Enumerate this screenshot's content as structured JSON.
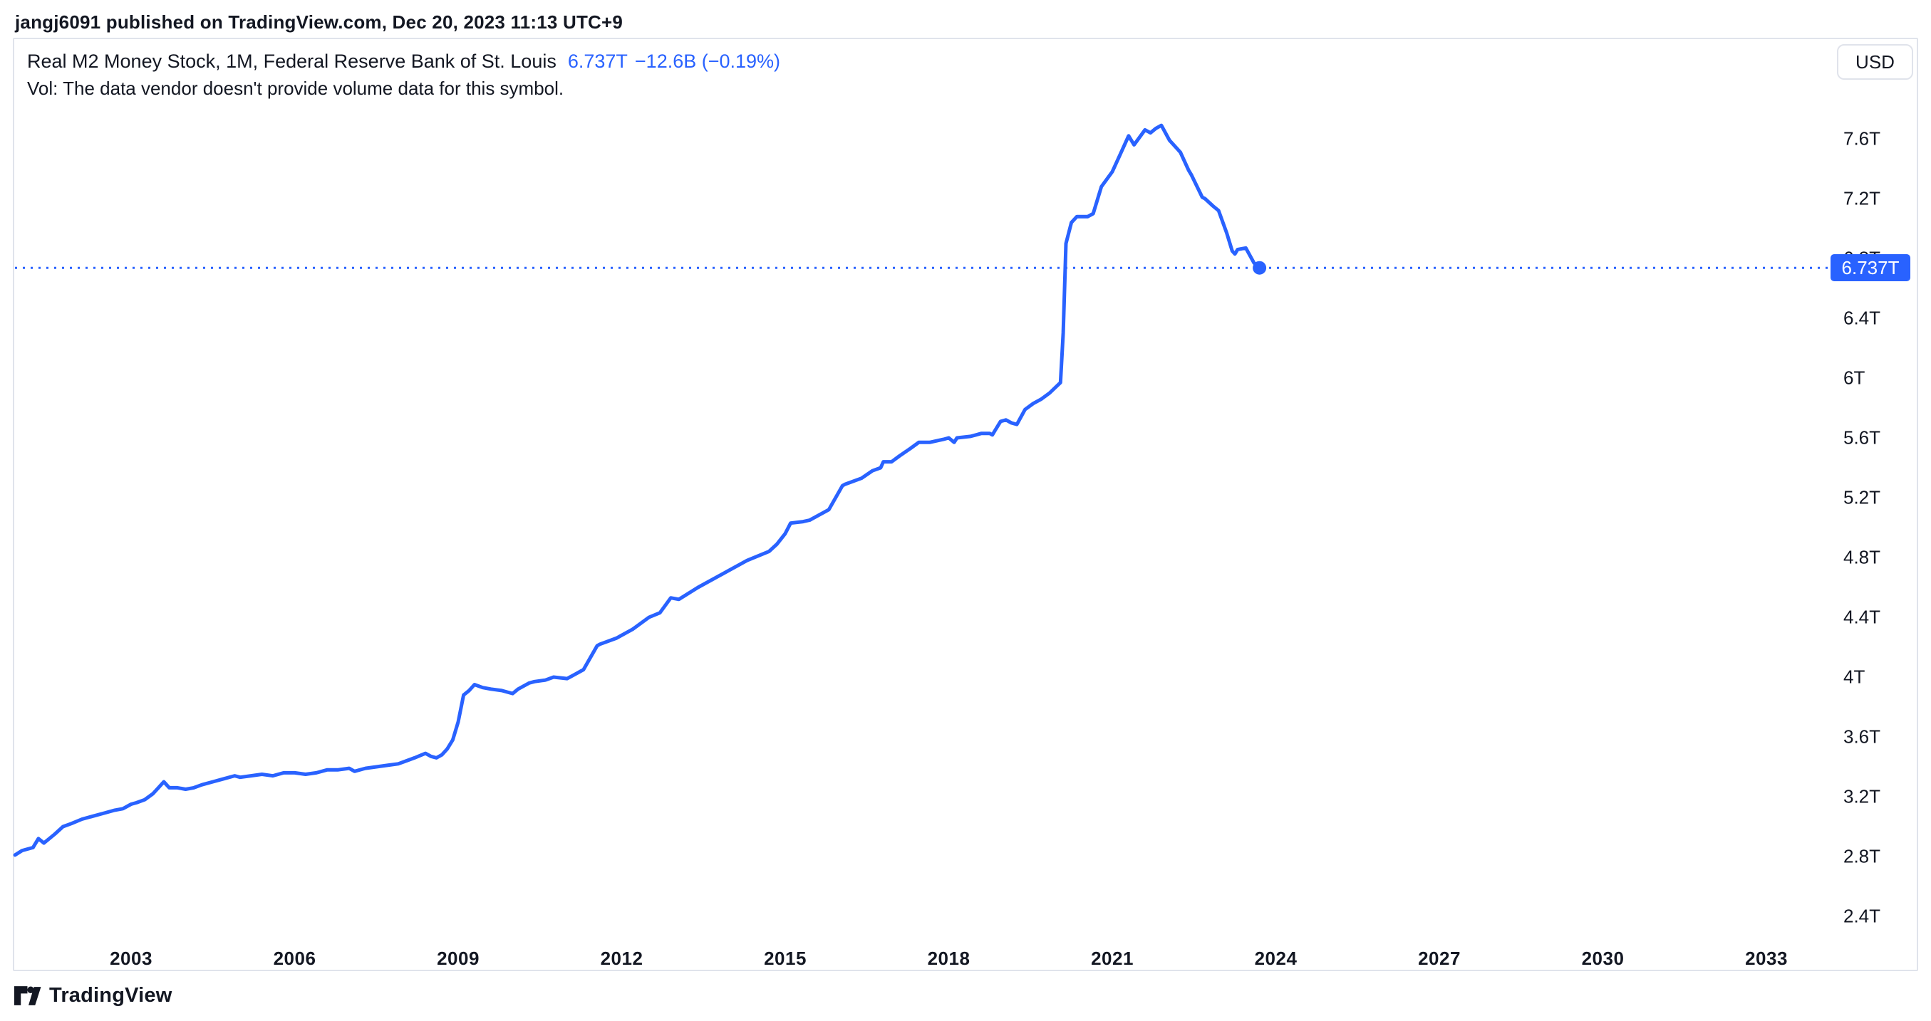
{
  "header": {
    "publish_line": "jangj6091 published on TradingView.com, Dec 20, 2023 11:13 UTC+9"
  },
  "legend": {
    "title": "Real M2 Money Stock, 1M, Federal Reserve Bank of St. Louis",
    "price": "6.737T",
    "change": "−12.6B (−0.19%)",
    "vol_note": "Vol: The data vendor doesn't provide volume data for this symbol."
  },
  "currency_button": {
    "label": "USD"
  },
  "price_label": {
    "text": "6.737T",
    "value": 6.737
  },
  "footer": {
    "brand": "TradingView"
  },
  "colors": {
    "accent": "#2962ff",
    "text": "#131722",
    "border": "#e0e3eb",
    "background": "#ffffff",
    "price_flag_text": "#ffffff"
  },
  "chart_data": {
    "type": "line",
    "title": "Real M2 Money Stock, 1M, Federal Reserve Bank of St. Louis",
    "unit": "USD, trillions",
    "grid": false,
    "legend_position": "none",
    "last_value": 6.737,
    "last_change": "−12.6B (−0.19%)",
    "x_axis_years_visible": [
      2003,
      2006,
      2009,
      2012,
      2015,
      2018,
      2021,
      2024,
      2027,
      2030,
      2033
    ],
    "y_ticks": [
      {
        "value": 7.6,
        "label": "7.6T"
      },
      {
        "value": 7.2,
        "label": "7.2T"
      },
      {
        "value": 6.8,
        "label": "6.8T"
      },
      {
        "value": 6.4,
        "label": "6.4T"
      },
      {
        "value": 6.0,
        "label": "6T"
      },
      {
        "value": 5.6,
        "label": "5.6T"
      },
      {
        "value": 5.2,
        "label": "5.2T"
      },
      {
        "value": 4.8,
        "label": "4.8T"
      },
      {
        "value": 4.4,
        "label": "4.4T"
      },
      {
        "value": 4.0,
        "label": "4T"
      },
      {
        "value": 3.6,
        "label": "3.6T"
      },
      {
        "value": 3.2,
        "label": "3.2T"
      },
      {
        "value": 2.8,
        "label": "2.8T"
      },
      {
        "value": 2.4,
        "label": "2.4T"
      }
    ],
    "x_range_years": [
      2000.85,
      2035.8
    ],
    "y_range": [
      2.05,
      8.27
    ],
    "series": [
      {
        "name": "Real M2 Money Stock",
        "color": "#2962ff",
        "points": [
          [
            2000.87,
            2.81
          ],
          [
            2001.0,
            2.84
          ],
          [
            2001.2,
            2.86
          ],
          [
            2001.3,
            2.92
          ],
          [
            2001.4,
            2.89
          ],
          [
            2001.6,
            2.95
          ],
          [
            2001.75,
            3.0
          ],
          [
            2001.9,
            3.02
          ],
          [
            2002.1,
            3.05
          ],
          [
            2002.3,
            3.07
          ],
          [
            2002.5,
            3.09
          ],
          [
            2002.7,
            3.11
          ],
          [
            2002.85,
            3.12
          ],
          [
            2003.0,
            3.15
          ],
          [
            2003.1,
            3.16
          ],
          [
            2003.25,
            3.18
          ],
          [
            2003.4,
            3.22
          ],
          [
            2003.5,
            3.26
          ],
          [
            2003.6,
            3.3
          ],
          [
            2003.7,
            3.26
          ],
          [
            2003.85,
            3.26
          ],
          [
            2004.0,
            3.25
          ],
          [
            2004.15,
            3.26
          ],
          [
            2004.3,
            3.28
          ],
          [
            2004.5,
            3.3
          ],
          [
            2004.7,
            3.32
          ],
          [
            2004.9,
            3.34
          ],
          [
            2005.0,
            3.33
          ],
          [
            2005.2,
            3.34
          ],
          [
            2005.4,
            3.35
          ],
          [
            2005.6,
            3.34
          ],
          [
            2005.8,
            3.36
          ],
          [
            2006.0,
            3.36
          ],
          [
            2006.2,
            3.35
          ],
          [
            2006.4,
            3.36
          ],
          [
            2006.6,
            3.38
          ],
          [
            2006.8,
            3.38
          ],
          [
            2007.0,
            3.39
          ],
          [
            2007.1,
            3.37
          ],
          [
            2007.3,
            3.39
          ],
          [
            2007.5,
            3.4
          ],
          [
            2007.7,
            3.41
          ],
          [
            2007.9,
            3.42
          ],
          [
            2008.05,
            3.44
          ],
          [
            2008.2,
            3.46
          ],
          [
            2008.4,
            3.49
          ],
          [
            2008.5,
            3.47
          ],
          [
            2008.6,
            3.46
          ],
          [
            2008.7,
            3.48
          ],
          [
            2008.8,
            3.52
          ],
          [
            2008.9,
            3.58
          ],
          [
            2009.0,
            3.7
          ],
          [
            2009.1,
            3.88
          ],
          [
            2009.2,
            3.91
          ],
          [
            2009.3,
            3.95
          ],
          [
            2009.45,
            3.93
          ],
          [
            2009.6,
            3.92
          ],
          [
            2009.8,
            3.91
          ],
          [
            2010.0,
            3.89
          ],
          [
            2010.1,
            3.92
          ],
          [
            2010.3,
            3.96
          ],
          [
            2010.4,
            3.97
          ],
          [
            2010.6,
            3.98
          ],
          [
            2010.75,
            4.0
          ],
          [
            2011.0,
            3.99
          ],
          [
            2011.15,
            4.02
          ],
          [
            2011.3,
            4.05
          ],
          [
            2011.55,
            4.21
          ],
          [
            2011.6,
            4.22
          ],
          [
            2011.9,
            4.26
          ],
          [
            2012.2,
            4.32
          ],
          [
            2012.5,
            4.4
          ],
          [
            2012.7,
            4.43
          ],
          [
            2012.9,
            4.53
          ],
          [
            2013.05,
            4.52
          ],
          [
            2013.4,
            4.6
          ],
          [
            2013.8,
            4.68
          ],
          [
            2014.3,
            4.78
          ],
          [
            2014.7,
            4.84
          ],
          [
            2014.85,
            4.89
          ],
          [
            2015.0,
            4.96
          ],
          [
            2015.1,
            5.03
          ],
          [
            2015.33,
            5.04
          ],
          [
            2015.45,
            5.05
          ],
          [
            2015.6,
            5.08
          ],
          [
            2015.8,
            5.12
          ],
          [
            2016.05,
            5.28
          ],
          [
            2016.1,
            5.29
          ],
          [
            2016.4,
            5.33
          ],
          [
            2016.6,
            5.38
          ],
          [
            2016.75,
            5.4
          ],
          [
            2016.8,
            5.44
          ],
          [
            2016.95,
            5.44
          ],
          [
            2017.1,
            5.48
          ],
          [
            2017.3,
            5.53
          ],
          [
            2017.45,
            5.57
          ],
          [
            2017.65,
            5.57
          ],
          [
            2017.9,
            5.59
          ],
          [
            2018.0,
            5.6
          ],
          [
            2018.1,
            5.57
          ],
          [
            2018.15,
            5.6
          ],
          [
            2018.4,
            5.61
          ],
          [
            2018.5,
            5.62
          ],
          [
            2018.6,
            5.63
          ],
          [
            2018.75,
            5.63
          ],
          [
            2018.8,
            5.62
          ],
          [
            2018.85,
            5.65
          ],
          [
            2018.95,
            5.71
          ],
          [
            2019.05,
            5.72
          ],
          [
            2019.15,
            5.7
          ],
          [
            2019.25,
            5.69
          ],
          [
            2019.4,
            5.79
          ],
          [
            2019.55,
            5.83
          ],
          [
            2019.7,
            5.86
          ],
          [
            2019.85,
            5.9
          ],
          [
            2020.05,
            5.97
          ],
          [
            2020.1,
            6.3
          ],
          [
            2020.15,
            6.9
          ],
          [
            2020.25,
            7.04
          ],
          [
            2020.35,
            7.08
          ],
          [
            2020.55,
            7.08
          ],
          [
            2020.65,
            7.1
          ],
          [
            2020.8,
            7.28
          ],
          [
            2021.0,
            7.38
          ],
          [
            2021.15,
            7.5
          ],
          [
            2021.3,
            7.62
          ],
          [
            2021.4,
            7.56
          ],
          [
            2021.6,
            7.66
          ],
          [
            2021.7,
            7.64
          ],
          [
            2021.8,
            7.67
          ],
          [
            2021.9,
            7.69
          ],
          [
            2022.05,
            7.59
          ],
          [
            2022.25,
            7.51
          ],
          [
            2022.4,
            7.39
          ],
          [
            2022.45,
            7.36
          ],
          [
            2022.65,
            7.21
          ],
          [
            2022.7,
            7.2
          ],
          [
            2022.85,
            7.15
          ],
          [
            2022.95,
            7.12
          ],
          [
            2023.1,
            6.97
          ],
          [
            2023.2,
            6.85
          ],
          [
            2023.25,
            6.83
          ],
          [
            2023.3,
            6.86
          ],
          [
            2023.45,
            6.87
          ],
          [
            2023.6,
            6.77
          ],
          [
            2023.7,
            6.737
          ]
        ]
      }
    ]
  }
}
